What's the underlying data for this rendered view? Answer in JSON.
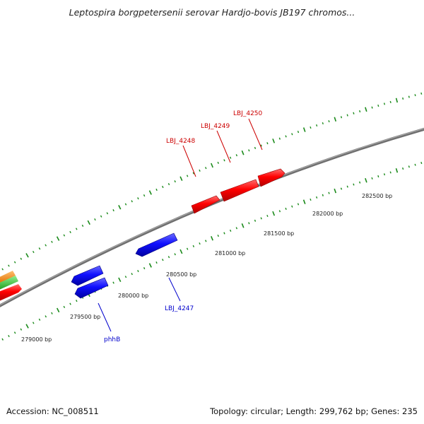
{
  "title": "Leptospira borgpetersenii serovar Hardjo-bovis JB197 chromos...",
  "footer": {
    "accession": "Accession: NC_008511",
    "stats": "Topology: circular; Length: 299,762 bp; Genes: 235"
  },
  "colors": {
    "forward_strand": "#ff0000",
    "reverse_strand": "#0000ff",
    "backbone": "#777777",
    "ticks": "#1a8a1a",
    "offscreen_track_1": "#ff8c00",
    "offscreen_track_2": "#33cc33"
  },
  "scale": {
    "labels": [
      {
        "value": 279000,
        "text": "279000 bp"
      },
      {
        "value": 279500,
        "text": "279500 bp"
      },
      {
        "value": 280000,
        "text": "280000 bp"
      },
      {
        "value": 280500,
        "text": "280500 bp"
      },
      {
        "value": 281000,
        "text": "281000 bp"
      },
      {
        "value": 281500,
        "text": "281500 bp"
      },
      {
        "value": 282000,
        "text": "282000 bp"
      },
      {
        "value": 282500,
        "text": "282500 bp"
      }
    ]
  },
  "genes": [
    {
      "name": "LBJ_4248",
      "strand": "forward"
    },
    {
      "name": "LBJ_4249",
      "strand": "forward"
    },
    {
      "name": "LBJ_4250",
      "strand": "forward"
    },
    {
      "name": "LBJ_4247",
      "strand": "reverse"
    },
    {
      "name": "phhB",
      "strand": "reverse"
    }
  ]
}
